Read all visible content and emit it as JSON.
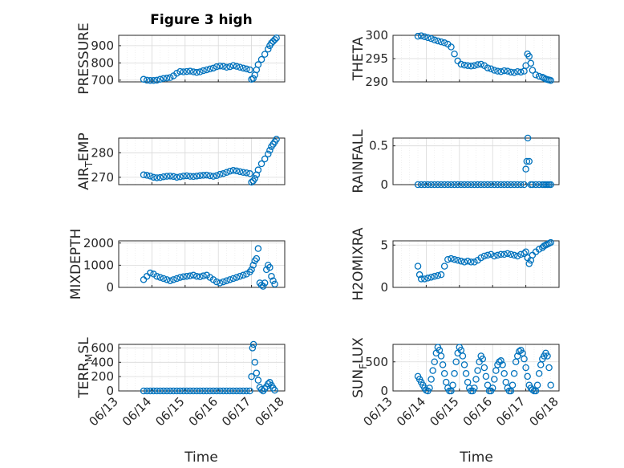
{
  "figure": {
    "title": "Figure 3 high",
    "x_axis_label": "Time",
    "date_ticks": [
      "06/13",
      "06/14",
      "06/15",
      "06/16",
      "06/17",
      "06/18"
    ],
    "marker_color": "#0072BD"
  },
  "chart_data": [
    {
      "type": "scatter",
      "ylabel": "PRESSURE",
      "ylim": [
        690,
        960
      ],
      "yticks": [
        700,
        800,
        900
      ],
      "xlim": [
        "06/13",
        "06/18"
      ],
      "grid": "on",
      "series": [
        {
          "x": [
            13.75,
            13.85,
            13.95,
            14.05,
            14.15,
            14.25,
            14.35,
            14.45,
            14.55,
            14.65,
            14.75,
            14.85,
            14.95,
            15.05,
            15.15,
            15.25,
            15.35,
            15.45,
            15.55,
            15.65,
            15.75,
            15.85,
            15.95,
            16.05,
            16.15,
            16.25,
            16.35,
            16.45,
            16.55,
            16.65,
            16.75,
            16.85,
            16.95,
            17.0,
            17.05,
            17.1,
            17.15,
            17.2,
            17.3,
            17.4,
            17.5,
            17.55,
            17.6,
            17.65,
            17.7,
            17.75
          ],
          "y": [
            705,
            700,
            698,
            698,
            700,
            705,
            710,
            712,
            715,
            725,
            740,
            750,
            748,
            750,
            752,
            748,
            745,
            748,
            755,
            760,
            765,
            770,
            778,
            782,
            780,
            775,
            778,
            785,
            780,
            775,
            770,
            765,
            760,
            705,
            710,
            730,
            760,
            790,
            820,
            850,
            880,
            900,
            915,
            925,
            935,
            945
          ]
        }
      ]
    },
    {
      "type": "scatter",
      "ylabel": "THETA",
      "ylim": [
        290,
        300
      ],
      "yticks": [
        290,
        295,
        300
      ],
      "xlim": [
        "06/13",
        "06/18"
      ],
      "grid": "on",
      "series": [
        {
          "x": [
            13.75,
            13.85,
            13.95,
            14.05,
            14.15,
            14.25,
            14.35,
            14.45,
            14.55,
            14.65,
            14.75,
            14.85,
            14.95,
            15.05,
            15.15,
            15.25,
            15.35,
            15.45,
            15.55,
            15.65,
            15.75,
            15.85,
            15.95,
            16.05,
            16.15,
            16.25,
            16.35,
            16.45,
            16.55,
            16.65,
            16.75,
            16.85,
            16.95,
            17.0,
            17.05,
            17.1,
            17.15,
            17.2,
            17.3,
            17.4,
            17.5,
            17.55,
            17.6,
            17.65,
            17.7,
            17.75
          ],
          "y": [
            299.8,
            299.9,
            299.7,
            299.5,
            299.3,
            299.0,
            298.8,
            298.6,
            298.4,
            298.1,
            297.5,
            296.0,
            294.5,
            293.8,
            293.6,
            293.5,
            293.4,
            293.5,
            293.7,
            293.8,
            293.5,
            293.0,
            292.8,
            292.5,
            292.3,
            292.2,
            292.4,
            292.3,
            292.1,
            292.0,
            292.2,
            292.1,
            292.3,
            293.5,
            296.0,
            295.5,
            294.0,
            292.5,
            291.5,
            291.2,
            291.0,
            290.8,
            290.6,
            290.5,
            290.4,
            290.3
          ]
        }
      ]
    },
    {
      "type": "scatter",
      "ylabel": "AIR",
      "ylabel_subscript": "T",
      "ylabel_suffix": "EMP",
      "ylim": [
        267,
        286
      ],
      "yticks": [
        270,
        280
      ],
      "xlim": [
        "06/13",
        "06/18"
      ],
      "grid": "on",
      "series": [
        {
          "x": [
            13.75,
            13.85,
            13.95,
            14.05,
            14.15,
            14.25,
            14.35,
            14.45,
            14.55,
            14.65,
            14.75,
            14.85,
            14.95,
            15.05,
            15.15,
            15.25,
            15.35,
            15.45,
            15.55,
            15.65,
            15.75,
            15.85,
            15.95,
            16.05,
            16.15,
            16.25,
            16.35,
            16.45,
            16.55,
            16.65,
            16.75,
            16.85,
            16.95,
            17.0,
            17.05,
            17.1,
            17.15,
            17.2,
            17.3,
            17.4,
            17.5,
            17.55,
            17.6,
            17.65,
            17.7,
            17.75
          ],
          "y": [
            271.0,
            270.8,
            270.5,
            270.0,
            269.8,
            269.9,
            270.2,
            270.4,
            270.5,
            270.3,
            270.0,
            270.2,
            270.5,
            270.6,
            270.4,
            270.3,
            270.5,
            270.7,
            270.8,
            270.9,
            270.6,
            270.4,
            270.7,
            271.2,
            271.5,
            272.0,
            272.5,
            272.8,
            272.6,
            272.3,
            272.0,
            271.8,
            271.5,
            268.0,
            268.5,
            269.5,
            271.0,
            273.0,
            275.5,
            277.5,
            279.5,
            281.0,
            282.5,
            283.5,
            284.5,
            285.5
          ]
        }
      ]
    },
    {
      "type": "scatter",
      "ylabel": "RAINFALL",
      "ylim": [
        0,
        0.6
      ],
      "yticks": [
        0,
        0.5
      ],
      "xlim": [
        "06/13",
        "06/18"
      ],
      "grid": "on",
      "series": [
        {
          "x": [
            13.75,
            13.85,
            13.95,
            14.05,
            14.15,
            14.25,
            14.35,
            14.45,
            14.55,
            14.65,
            14.75,
            14.85,
            14.95,
            15.05,
            15.15,
            15.25,
            15.35,
            15.45,
            15.55,
            15.65,
            15.75,
            15.85,
            15.95,
            16.05,
            16.15,
            16.25,
            16.35,
            16.45,
            16.55,
            16.65,
            16.75,
            16.85,
            16.95,
            17.0,
            17.03,
            17.06,
            17.1,
            17.15,
            17.2,
            17.3,
            17.4,
            17.5,
            17.55,
            17.6,
            17.65,
            17.7,
            17.75
          ],
          "y": [
            0,
            0,
            0,
            0,
            0,
            0,
            0,
            0,
            0,
            0,
            0,
            0,
            0,
            0,
            0,
            0,
            0,
            0,
            0,
            0,
            0,
            0,
            0,
            0,
            0,
            0,
            0,
            0,
            0,
            0,
            0,
            0,
            0,
            0.2,
            0.3,
            0.6,
            0.3,
            0,
            0,
            0,
            0,
            0,
            0,
            0,
            0,
            0,
            0
          ]
        }
      ]
    },
    {
      "type": "scatter",
      "ylabel": "MIXDEPTH",
      "ylim": [
        0,
        2100
      ],
      "yticks": [
        0,
        1000,
        2000
      ],
      "xlim": [
        "06/13",
        "06/18"
      ],
      "grid": "on",
      "series": [
        {
          "x": [
            13.75,
            13.85,
            13.95,
            14.05,
            14.15,
            14.25,
            14.35,
            14.45,
            14.55,
            14.65,
            14.75,
            14.85,
            14.95,
            15.05,
            15.15,
            15.25,
            15.35,
            15.45,
            15.55,
            15.65,
            15.75,
            15.85,
            15.95,
            16.05,
            16.15,
            16.25,
            16.35,
            16.45,
            16.55,
            16.65,
            16.75,
            16.85,
            16.95,
            17.0,
            17.05,
            17.1,
            17.15,
            17.2,
            17.25,
            17.3,
            17.35,
            17.4,
            17.45,
            17.5,
            17.55,
            17.6,
            17.65,
            17.7
          ],
          "y": [
            350,
            500,
            650,
            600,
            500,
            450,
            400,
            350,
            300,
            350,
            400,
            450,
            480,
            500,
            520,
            550,
            500,
            480,
            520,
            550,
            450,
            350,
            250,
            200,
            250,
            300,
            350,
            400,
            450,
            500,
            550,
            600,
            700,
            800,
            1000,
            1200,
            1300,
            1750,
            200,
            100,
            50,
            200,
            800,
            1000,
            900,
            500,
            300,
            150
          ]
        }
      ]
    },
    {
      "type": "scatter",
      "ylabel": "H2OMIXRA",
      "ylim": [
        0,
        5.5
      ],
      "yticks": [
        0,
        5
      ],
      "xlim": [
        "06/13",
        "06/18"
      ],
      "grid": "on",
      "series": [
        {
          "x": [
            13.75,
            13.8,
            13.85,
            13.95,
            14.05,
            14.15,
            14.25,
            14.35,
            14.45,
            14.55,
            14.65,
            14.75,
            14.85,
            14.95,
            15.05,
            15.15,
            15.25,
            15.35,
            15.45,
            15.55,
            15.65,
            15.75,
            15.85,
            15.95,
            16.05,
            16.15,
            16.25,
            16.35,
            16.45,
            16.55,
            16.65,
            16.75,
            16.85,
            16.95,
            17.0,
            17.05,
            17.1,
            17.15,
            17.2,
            17.3,
            17.4,
            17.5,
            17.55,
            17.6,
            17.65,
            17.7,
            17.75
          ],
          "y": [
            2.5,
            1.5,
            1.0,
            1.0,
            1.1,
            1.2,
            1.3,
            1.4,
            1.5,
            2.5,
            3.3,
            3.4,
            3.3,
            3.2,
            3.1,
            3.0,
            3.1,
            3.0,
            3.0,
            3.2,
            3.5,
            3.7,
            3.8,
            3.9,
            3.7,
            3.8,
            3.9,
            3.9,
            4.0,
            3.9,
            3.8,
            3.7,
            3.9,
            4.0,
            4.2,
            3.5,
            2.8,
            3.2,
            3.8,
            4.2,
            4.5,
            4.7,
            4.9,
            5.0,
            5.1,
            5.2,
            5.3
          ]
        }
      ]
    },
    {
      "type": "scatter",
      "ylabel": "TERR",
      "ylabel_subscript": "M",
      "ylabel_suffix": "SL",
      "ylim": [
        0,
        650
      ],
      "yticks": [
        0,
        200,
        400,
        600
      ],
      "xlim": [
        "06/13",
        "06/18"
      ],
      "grid": "on",
      "series": [
        {
          "x": [
            13.75,
            13.85,
            13.95,
            14.05,
            14.15,
            14.25,
            14.35,
            14.45,
            14.55,
            14.65,
            14.75,
            14.85,
            14.95,
            15.05,
            15.15,
            15.25,
            15.35,
            15.45,
            15.55,
            15.65,
            15.75,
            15.85,
            15.95,
            16.05,
            16.15,
            16.25,
            16.35,
            16.45,
            16.55,
            16.65,
            16.75,
            16.85,
            16.95,
            17.0,
            17.03,
            17.06,
            17.1,
            17.15,
            17.2,
            17.25,
            17.3,
            17.35,
            17.4,
            17.45,
            17.5,
            17.55,
            17.6,
            17.65,
            17.7
          ],
          "y": [
            0,
            0,
            0,
            0,
            0,
            0,
            0,
            0,
            0,
            0,
            0,
            0,
            0,
            0,
            0,
            0,
            0,
            0,
            0,
            0,
            0,
            0,
            0,
            0,
            0,
            0,
            0,
            0,
            0,
            0,
            0,
            0,
            0,
            200,
            600,
            650,
            400,
            250,
            150,
            50,
            20,
            0,
            30,
            60,
            100,
            120,
            80,
            40,
            10
          ]
        }
      ]
    },
    {
      "type": "scatter",
      "ylabel": "SUN",
      "ylabel_subscript": "F",
      "ylabel_suffix": "LUX",
      "ylim": [
        0,
        800
      ],
      "yticks": [
        0,
        500
      ],
      "xlim": [
        "06/13",
        "06/18"
      ],
      "grid": "on",
      "series": [
        {
          "x": [
            13.75,
            13.8,
            13.85,
            13.9,
            13.95,
            14.0,
            14.05,
            14.1,
            14.15,
            14.2,
            14.25,
            14.3,
            14.35,
            14.4,
            14.45,
            14.5,
            14.55,
            14.6,
            14.65,
            14.7,
            14.75,
            14.8,
            14.85,
            14.9,
            14.95,
            15.0,
            15.05,
            15.1,
            15.15,
            15.2,
            15.25,
            15.3,
            15.35,
            15.4,
            15.45,
            15.5,
            15.55,
            15.6,
            15.65,
            15.7,
            15.75,
            15.8,
            15.85,
            15.9,
            15.95,
            16.0,
            16.05,
            16.1,
            16.15,
            16.2,
            16.25,
            16.3,
            16.35,
            16.4,
            16.45,
            16.5,
            16.55,
            16.6,
            16.65,
            16.7,
            16.75,
            16.8,
            16.85,
            16.9,
            16.95,
            17.0,
            17.05,
            17.1,
            17.15,
            17.2,
            17.25,
            17.3,
            17.35,
            17.4,
            17.45,
            17.5,
            17.55,
            17.6,
            17.65,
            17.7,
            17.75
          ],
          "y": [
            250,
            200,
            150,
            100,
            50,
            10,
            0,
            50,
            200,
            350,
            500,
            650,
            750,
            700,
            600,
            450,
            300,
            150,
            50,
            0,
            0,
            100,
            300,
            500,
            650,
            750,
            700,
            600,
            450,
            300,
            150,
            50,
            0,
            0,
            50,
            200,
            350,
            500,
            600,
            550,
            400,
            250,
            100,
            0,
            0,
            50,
            200,
            350,
            450,
            500,
            520,
            450,
            300,
            150,
            50,
            0,
            0,
            100,
            300,
            500,
            600,
            680,
            700,
            650,
            550,
            400,
            250,
            100,
            50,
            20,
            0,
            0,
            100,
            300,
            450,
            550,
            600,
            650,
            600,
            400,
            100
          ]
        }
      ]
    }
  ]
}
